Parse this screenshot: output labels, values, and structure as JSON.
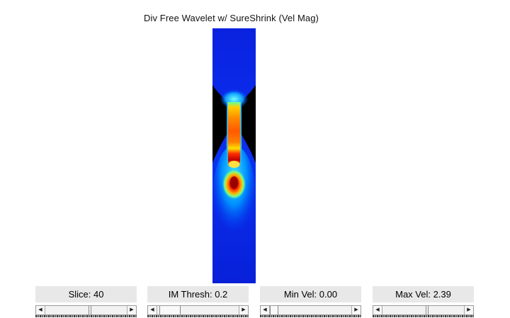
{
  "figure": {
    "title": "Div Free Wavelet w/ SureShrink (Vel Mag)"
  },
  "image": {
    "description_icon": "velocity-magnitude-heatmap",
    "colormap": [
      "#00008f",
      "#0000ff",
      "#00a0ff",
      "#00ffff",
      "#80ff80",
      "#ffff00",
      "#ff8000",
      "#ff0000",
      "#800000"
    ],
    "background_color": "#000000"
  },
  "controls": [
    {
      "id": "slice",
      "label": "Slice: 40",
      "position": 0.42
    },
    {
      "id": "im-thresh",
      "label": "IM Thresh: 0.2",
      "position": 0.2
    },
    {
      "id": "min-vel",
      "label": "Min Vel: 0.00",
      "position": 0.0
    },
    {
      "id": "max-vel",
      "label": "Max Vel: 2.39",
      "position": 0.5
    }
  ]
}
